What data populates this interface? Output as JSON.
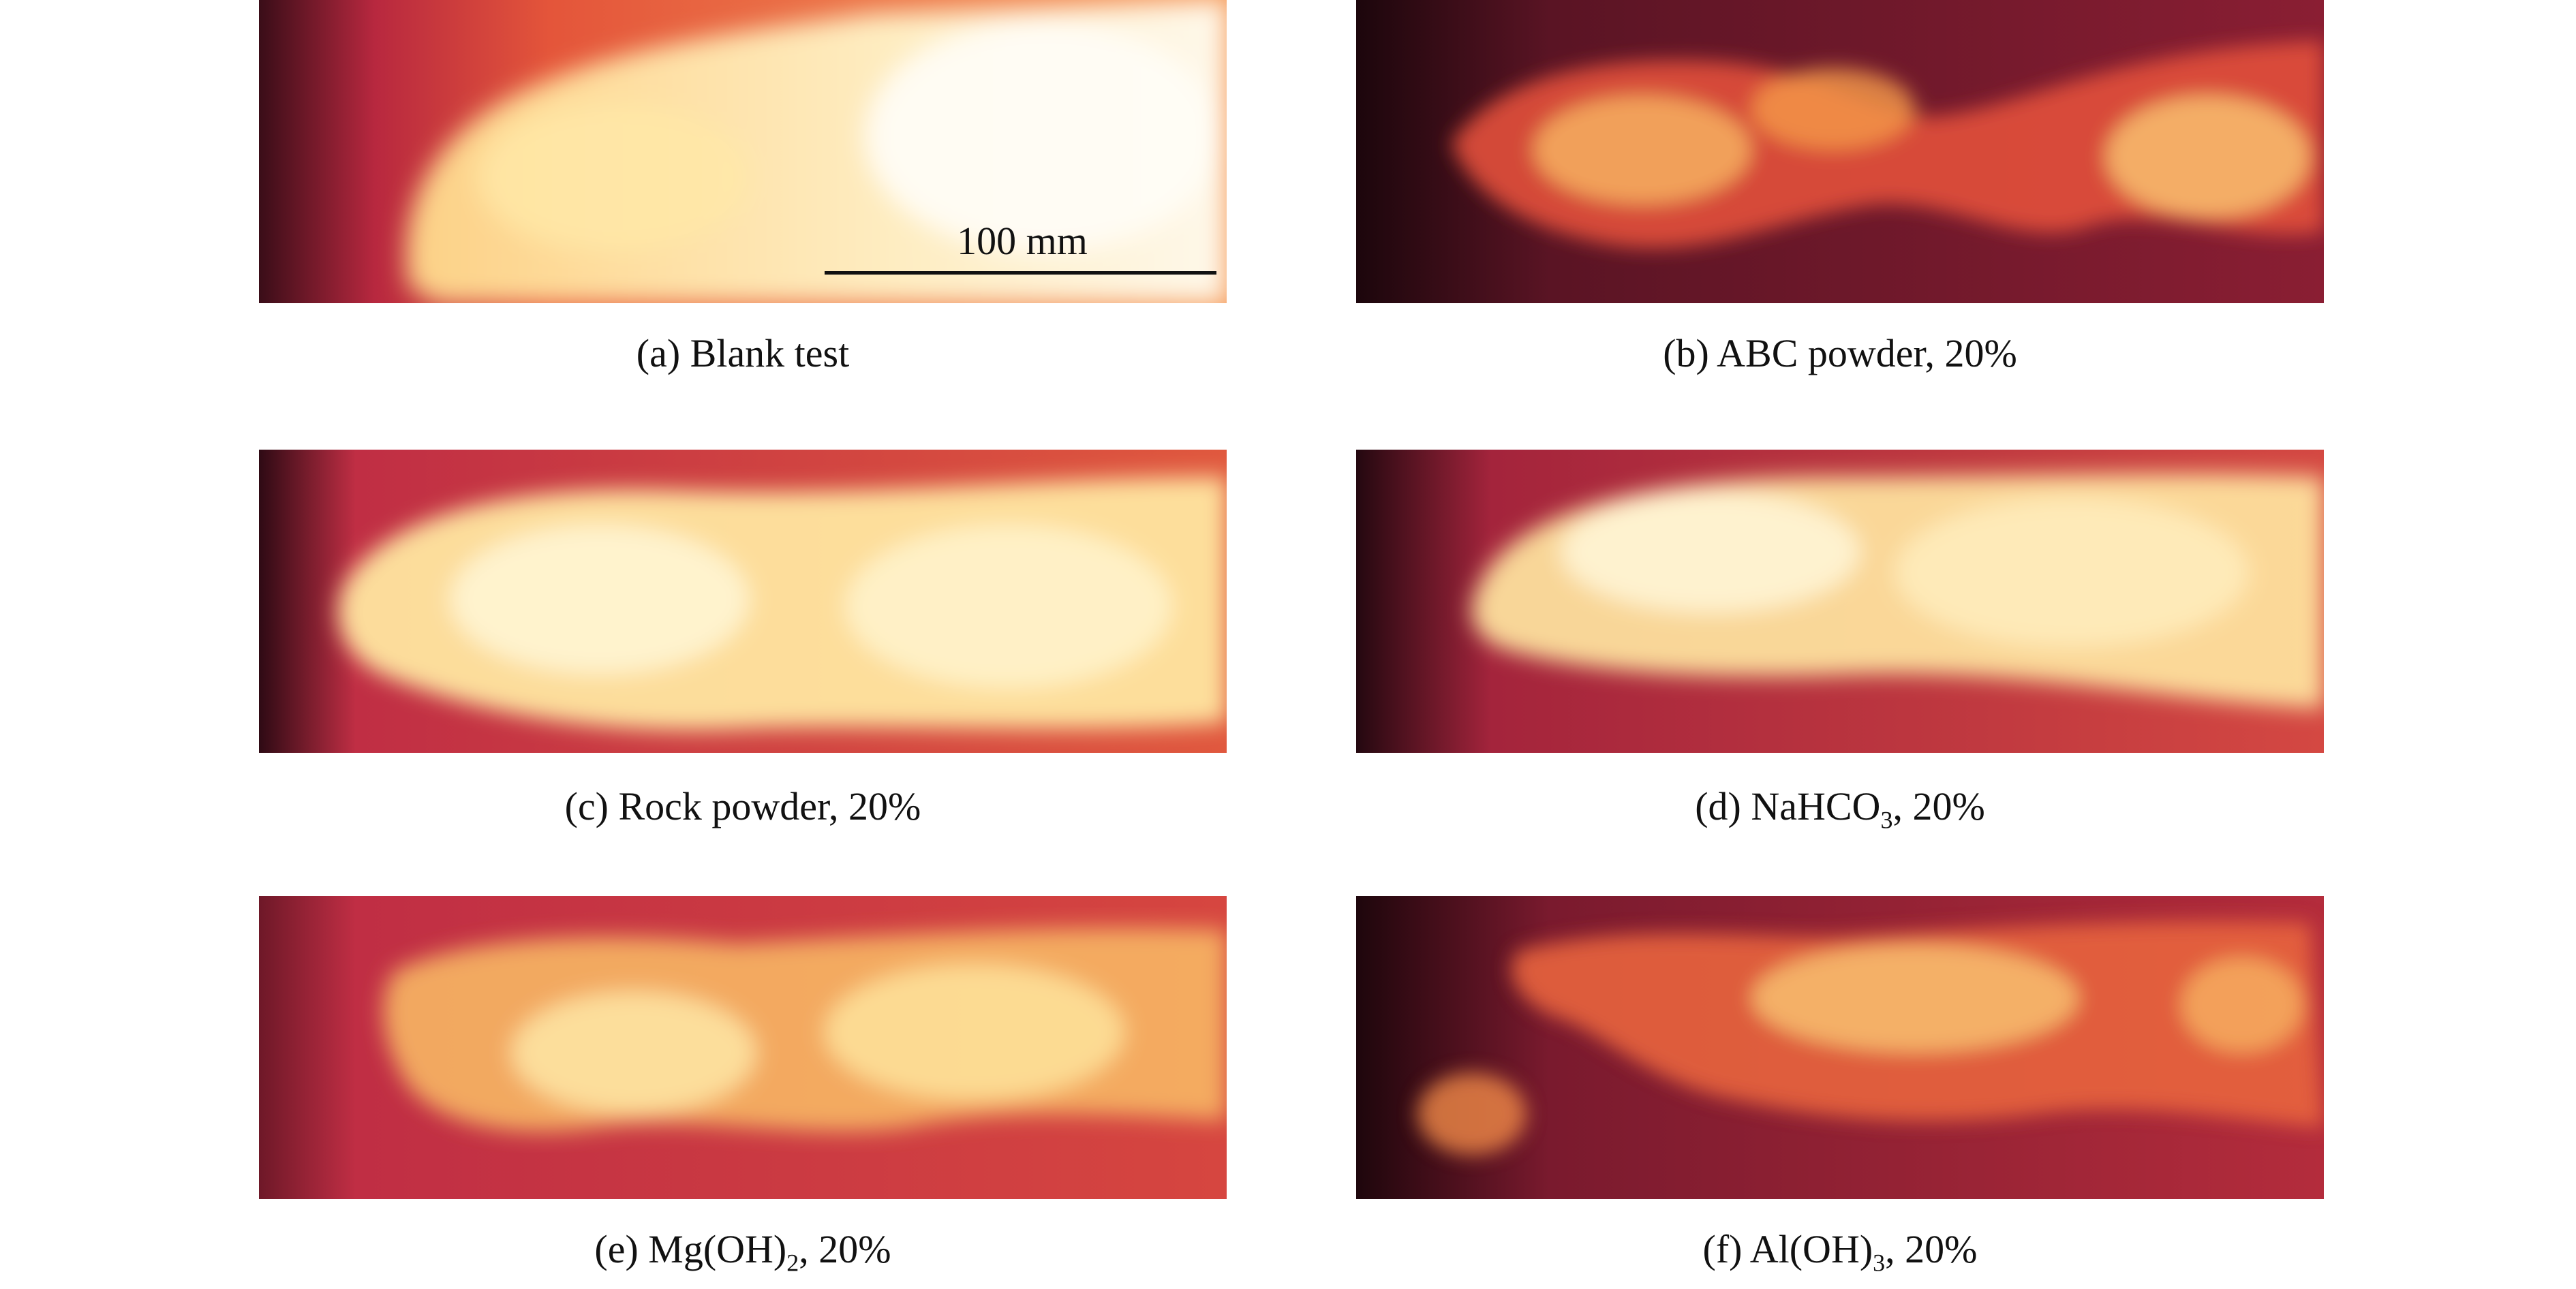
{
  "figure": {
    "scale_bar": {
      "label": "100 mm"
    },
    "panels": [
      {
        "id": "a",
        "caption": {
          "prefix": "(a) Blank test",
          "sub": "",
          "suffix": ""
        },
        "intensity": 0.95
      },
      {
        "id": "b",
        "caption": {
          "prefix": "(b) ABC powder, 20%",
          "sub": "",
          "suffix": ""
        },
        "intensity": 0.45
      },
      {
        "id": "c",
        "caption": {
          "prefix": "(c) Rock powder, 20%",
          "sub": "",
          "suffix": ""
        },
        "intensity": 0.9
      },
      {
        "id": "d",
        "caption": {
          "prefix": "(d) NaHCO",
          "sub": "3",
          "suffix": ", 20%"
        },
        "intensity": 0.8
      },
      {
        "id": "e",
        "caption": {
          "prefix": "(e) Mg(OH)",
          "sub": "2",
          "suffix": ", 20%"
        },
        "intensity": 0.7
      },
      {
        "id": "f",
        "caption": {
          "prefix": "(f) Al(OH)",
          "sub": "3",
          "suffix": ", 20%"
        },
        "intensity": 0.5
      }
    ],
    "colors": {
      "dark": "#2a0b14",
      "mid": "#c9304a",
      "warm": "#f07a3c",
      "bright": "#ffe9a6",
      "white": "#fffbe8"
    }
  }
}
